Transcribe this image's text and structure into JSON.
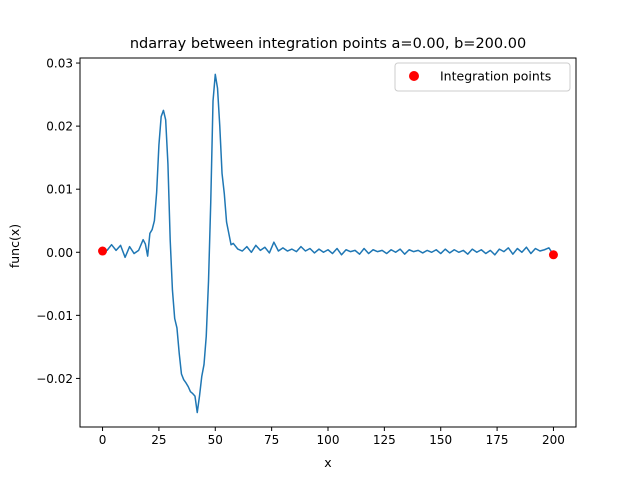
{
  "chart_data": {
    "type": "line",
    "title": "ndarray between integration points a=0.00, b=200.00",
    "xlabel": "x",
    "ylabel": "func(x)",
    "xlim": [
      -10,
      210
    ],
    "ylim": [
      -0.0277,
      0.0308
    ],
    "xticks": [
      0,
      25,
      50,
      75,
      100,
      125,
      150,
      175,
      200
    ],
    "yticks": [
      -0.02,
      -0.01,
      0.0,
      0.01,
      0.02,
      0.03
    ],
    "ytick_labels": [
      "−0.02",
      "−0.01",
      "0.00",
      "0.01",
      "0.02",
      "0.03"
    ],
    "grid": false,
    "legend_position": "top-right",
    "series": [
      {
        "name": "",
        "color": "#1f77b4",
        "x": [
          0,
          2,
          4,
          6,
          8,
          10,
          12,
          14,
          16,
          18,
          19,
          20,
          21,
          22,
          23,
          24,
          25,
          26,
          27,
          28,
          29,
          30,
          31,
          32,
          33,
          34,
          35,
          36,
          37,
          38,
          39,
          40,
          41,
          42,
          43,
          44,
          45,
          46,
          47,
          48,
          49,
          50,
          51,
          52,
          53,
          54,
          55,
          56,
          57,
          58,
          60,
          62,
          64,
          66,
          68,
          70,
          72,
          74,
          76,
          78,
          80,
          82,
          84,
          86,
          88,
          90,
          92,
          94,
          96,
          98,
          100,
          102,
          104,
          106,
          108,
          110,
          112,
          114,
          116,
          118,
          120,
          122,
          124,
          126,
          128,
          130,
          132,
          134,
          136,
          138,
          140,
          142,
          144,
          146,
          148,
          150,
          152,
          154,
          156,
          158,
          160,
          162,
          164,
          166,
          168,
          170,
          172,
          174,
          176,
          178,
          180,
          182,
          184,
          186,
          188,
          190,
          192,
          194,
          196,
          198,
          200
        ],
        "values": [
          0.0002,
          0.0003,
          0.0012,
          0.0003,
          0.0011,
          -0.0008,
          0.0009,
          -0.0002,
          0.0003,
          0.002,
          0.0013,
          -0.0006,
          0.003,
          0.0036,
          0.005,
          0.0095,
          0.017,
          0.0215,
          0.0225,
          0.021,
          0.014,
          0.002,
          -0.006,
          -0.0105,
          -0.012,
          -0.016,
          -0.0193,
          -0.0202,
          -0.0207,
          -0.0213,
          -0.0221,
          -0.0224,
          -0.0228,
          -0.0254,
          -0.0228,
          -0.0197,
          -0.0178,
          -0.0133,
          -0.0046,
          0.008,
          0.024,
          0.0282,
          0.026,
          0.02,
          0.0125,
          0.0093,
          0.0048,
          0.003,
          0.0012,
          0.0014,
          0.0005,
          0.0002,
          0.0009,
          0.0,
          0.0011,
          0.0003,
          0.0008,
          -0.0001,
          0.0016,
          0.0002,
          0.0007,
          0.0002,
          0.0005,
          0.0001,
          0.0009,
          0.0002,
          0.0006,
          -0.0001,
          0.0005,
          0.0,
          0.0004,
          -0.0002,
          0.0006,
          -0.0004,
          0.0004,
          0.0001,
          0.0003,
          -0.0003,
          0.0006,
          -0.0002,
          0.0004,
          0.0001,
          0.0003,
          -0.0002,
          0.0004,
          0.0,
          0.0005,
          -0.0003,
          0.0004,
          0.0001,
          0.0003,
          -0.0001,
          0.0003,
          0.0,
          0.0004,
          -0.0002,
          0.0005,
          -0.0001,
          0.0004,
          0.0,
          0.0003,
          -0.0003,
          0.0005,
          0.0,
          0.0004,
          -0.0002,
          0.0003,
          -0.0004,
          0.0005,
          0.0001,
          0.0007,
          -0.0003,
          0.0006,
          0.0,
          0.0008,
          -0.0002,
          0.0006,
          0.0002,
          0.0004,
          0.0007,
          -0.0004
        ]
      },
      {
        "name": "Integration points",
        "color": "#ff0000",
        "type": "scatter",
        "x": [
          0,
          200
        ],
        "values": [
          0.0002,
          -0.0004
        ]
      }
    ]
  }
}
